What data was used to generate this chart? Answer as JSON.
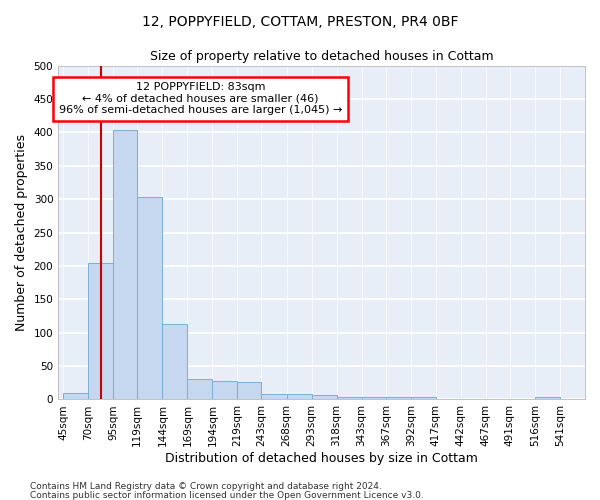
{
  "title": "12, POPPYFIELD, COTTAM, PRESTON, PR4 0BF",
  "subtitle": "Size of property relative to detached houses in Cottam",
  "xlabel": "Distribution of detached houses by size in Cottam",
  "ylabel": "Number of detached properties",
  "bar_left_edges": [
    45,
    70,
    95,
    119,
    144,
    169,
    194,
    219,
    243,
    268,
    293,
    318,
    343,
    367,
    392,
    417,
    442,
    467,
    491,
    516
  ],
  "bar_widths": [
    25,
    25,
    24,
    25,
    25,
    25,
    25,
    24,
    25,
    25,
    25,
    25,
    24,
    25,
    25,
    25,
    25,
    24,
    25,
    25
  ],
  "bar_heights": [
    10,
    205,
    403,
    303,
    113,
    30,
    28,
    26,
    8,
    8,
    6,
    3,
    3,
    4,
    3,
    0,
    0,
    0,
    0,
    4
  ],
  "bar_color": "#c5d8f0",
  "bar_edgecolor": "#7aafd4",
  "property_line_x": 83,
  "property_line_color": "#cc0000",
  "ylim": [
    0,
    500
  ],
  "yticks": [
    0,
    50,
    100,
    150,
    200,
    250,
    300,
    350,
    400,
    450,
    500
  ],
  "xtick_positions": [
    45,
    70,
    95,
    119,
    144,
    169,
    194,
    219,
    243,
    268,
    293,
    318,
    343,
    367,
    392,
    417,
    442,
    467,
    491,
    516,
    541
  ],
  "xtick_labels": [
    "45sqm",
    "70sqm",
    "95sqm",
    "119sqm",
    "144sqm",
    "169sqm",
    "194sqm",
    "219sqm",
    "243sqm",
    "268sqm",
    "293sqm",
    "318sqm",
    "343sqm",
    "367sqm",
    "392sqm",
    "417sqm",
    "442sqm",
    "467sqm",
    "491sqm",
    "516sqm",
    "541sqm"
  ],
  "annotation_box_text": "12 POPPYFIELD: 83sqm\n← 4% of detached houses are smaller (46)\n96% of semi-detached houses are larger (1,045) →",
  "footnote1": "Contains HM Land Registry data © Crown copyright and database right 2024.",
  "footnote2": "Contains public sector information licensed under the Open Government Licence v3.0.",
  "fig_facecolor": "#ffffff",
  "axes_facecolor": "#e8eef8",
  "grid_color": "#ffffff",
  "title_fontsize": 10,
  "subtitle_fontsize": 9,
  "axis_label_fontsize": 9,
  "tick_fontsize": 7.5,
  "annotation_fontsize": 8,
  "footnote_fontsize": 6.5
}
